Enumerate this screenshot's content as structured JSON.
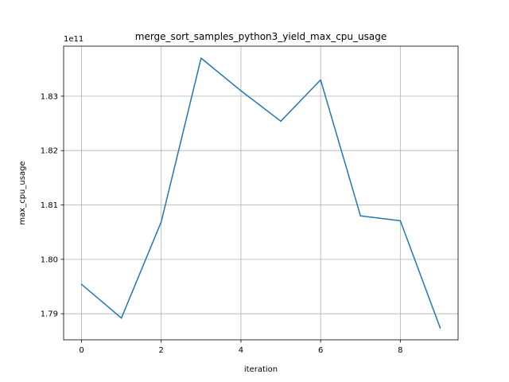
{
  "chart_data": {
    "type": "line",
    "title": "merge_sort_samples_python3_yield_max_cpu_usage",
    "xlabel": "iteration",
    "ylabel": "max_cpu_usage",
    "y_offset_label": "1e11",
    "xlim": [
      -0.45,
      9.45
    ],
    "ylim": [
      1.7852,
      1.8392
    ],
    "x_ticks": [
      0,
      2,
      4,
      6,
      8
    ],
    "x_tick_labels": [
      "0",
      "2",
      "4",
      "6",
      "8"
    ],
    "y_ticks": [
      1.79,
      1.8,
      1.81,
      1.82,
      1.83
    ],
    "y_tick_labels": [
      "1.79",
      "1.80",
      "1.81",
      "1.82",
      "1.83"
    ],
    "grid": true,
    "series": [
      {
        "color": "#1f77b4",
        "x": [
          0,
          1,
          2,
          3,
          4,
          5,
          6,
          7,
          8,
          9
        ],
        "values": [
          1.7954,
          1.7892,
          1.8069,
          1.837,
          1.831,
          1.8254,
          1.833,
          1.808,
          1.8071,
          1.7874
        ]
      }
    ]
  }
}
